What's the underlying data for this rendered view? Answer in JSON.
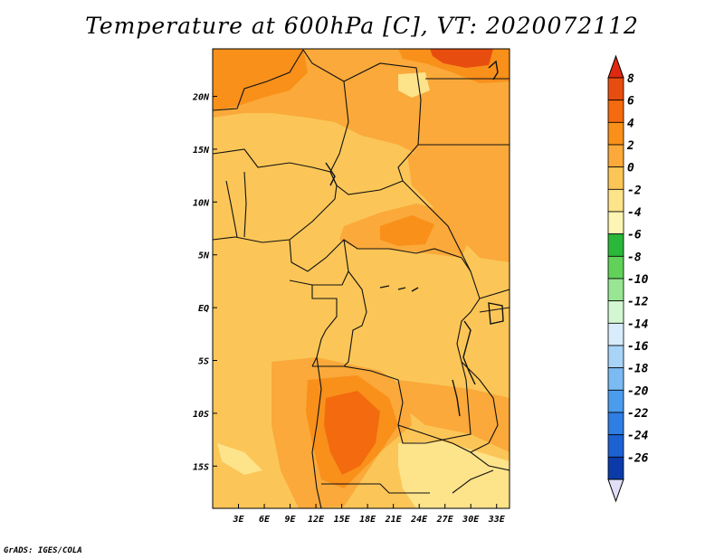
{
  "title": "Temperature at 600hPa [C], VT: 2020072112",
  "credit": "GrADS: IGES/COLA",
  "map": {
    "lon_range": [
      0,
      34.5
    ],
    "lat_range": [
      -19,
      24.5
    ],
    "lat_ticks": [
      {
        "value": 20,
        "label": "20N"
      },
      {
        "value": 15,
        "label": "15N"
      },
      {
        "value": 10,
        "label": "10N"
      },
      {
        "value": 5,
        "label": "5N"
      },
      {
        "value": 0,
        "label": "EQ"
      },
      {
        "value": -5,
        "label": "5S"
      },
      {
        "value": -10,
        "label": "10S"
      },
      {
        "value": -15,
        "label": "15S"
      }
    ],
    "lon_ticks": [
      {
        "value": 3,
        "label": "3E"
      },
      {
        "value": 6,
        "label": "6E"
      },
      {
        "value": 9,
        "label": "9E"
      },
      {
        "value": 12,
        "label": "12E"
      },
      {
        "value": 15,
        "label": "15E"
      },
      {
        "value": 18,
        "label": "18E"
      },
      {
        "value": 21,
        "label": "21E"
      },
      {
        "value": 24,
        "label": "24E"
      },
      {
        "value": 27,
        "label": "27E"
      },
      {
        "value": 30,
        "label": "30E"
      },
      {
        "value": 33,
        "label": "33E"
      }
    ]
  },
  "colorbar": {
    "levels": [
      "8",
      "6",
      "4",
      "2",
      "0",
      "-2",
      "-4",
      "-6",
      "-8",
      "-10",
      "-12",
      "-14",
      "-16",
      "-18",
      "-20",
      "-22",
      "-24",
      "-26"
    ],
    "colors": [
      "#e84d10",
      "#f46a0e",
      "#f8901a",
      "#faa93a",
      "#fbc657",
      "#fde38a",
      "#fdf5b4",
      "#2bb739",
      "#62d15a",
      "#98e594",
      "#d2f7d2",
      "#d8ecfb",
      "#a8d4f7",
      "#7bbaf2",
      "#4c9ced",
      "#2f7ee4",
      "#1d62d2",
      "#0b3ba8",
      "#0a1a72"
    ],
    "top_color": "#e02810",
    "bottom_color": "#e1dff8"
  },
  "colors": {
    "base": "#fbc657",
    "warm": "#faa93a",
    "warmer": "#f8901a",
    "hot": "#f46a0e",
    "hottest": "#e84d10",
    "cool": "#fde38a"
  }
}
